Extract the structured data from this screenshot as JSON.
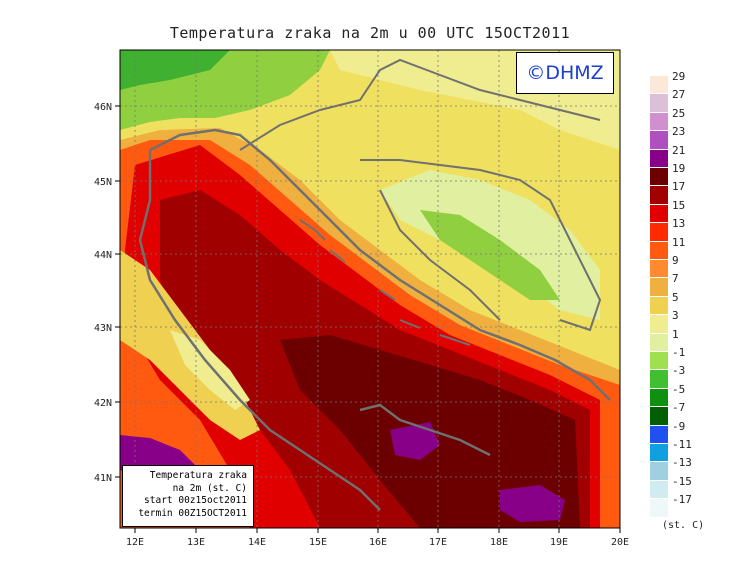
{
  "title": "Temperatura zraka na 2m u 00 UTC 15OCT2011",
  "logo_text": "©DHMZ",
  "info_box": {
    "line1": "Temperatura zraka",
    "line2": "na 2m (st. C)",
    "line3": "start 00z15oct2011",
    "line4": "termin 00Z15OCT2011"
  },
  "axes": {
    "x_ticks": [
      "12E",
      "13E",
      "14E",
      "15E",
      "16E",
      "17E",
      "18E",
      "19E",
      "20E"
    ],
    "y_ticks": [
      "41N",
      "42N",
      "43N",
      "44N",
      "45N",
      "46N"
    ]
  },
  "legend": {
    "units": "(st. C)",
    "levels": [
      "29",
      "27",
      "25",
      "23",
      "21",
      "19",
      "17",
      "15",
      "13",
      "11",
      "9",
      "7",
      "5",
      "3",
      "1",
      "-1",
      "-3",
      "-5",
      "-7",
      "-9",
      "-11",
      "-13",
      "-15",
      "-17"
    ],
    "colors": [
      "#fde8d8",
      "#dcc0d8",
      "#d090d0",
      "#b050c0",
      "#880088",
      "#6c0000",
      "#a00000",
      "#e00000",
      "#ff2a00",
      "#ff5a10",
      "#ff8a30",
      "#f0b040",
      "#f0d050",
      "#f0ec90",
      "#e0f0a0",
      "#a0e050",
      "#40c030",
      "#109010",
      "#006000",
      "#2050f0",
      "#10a0e0",
      "#a0d0e0",
      "#d0ecf0",
      "#eef8f8"
    ]
  }
}
